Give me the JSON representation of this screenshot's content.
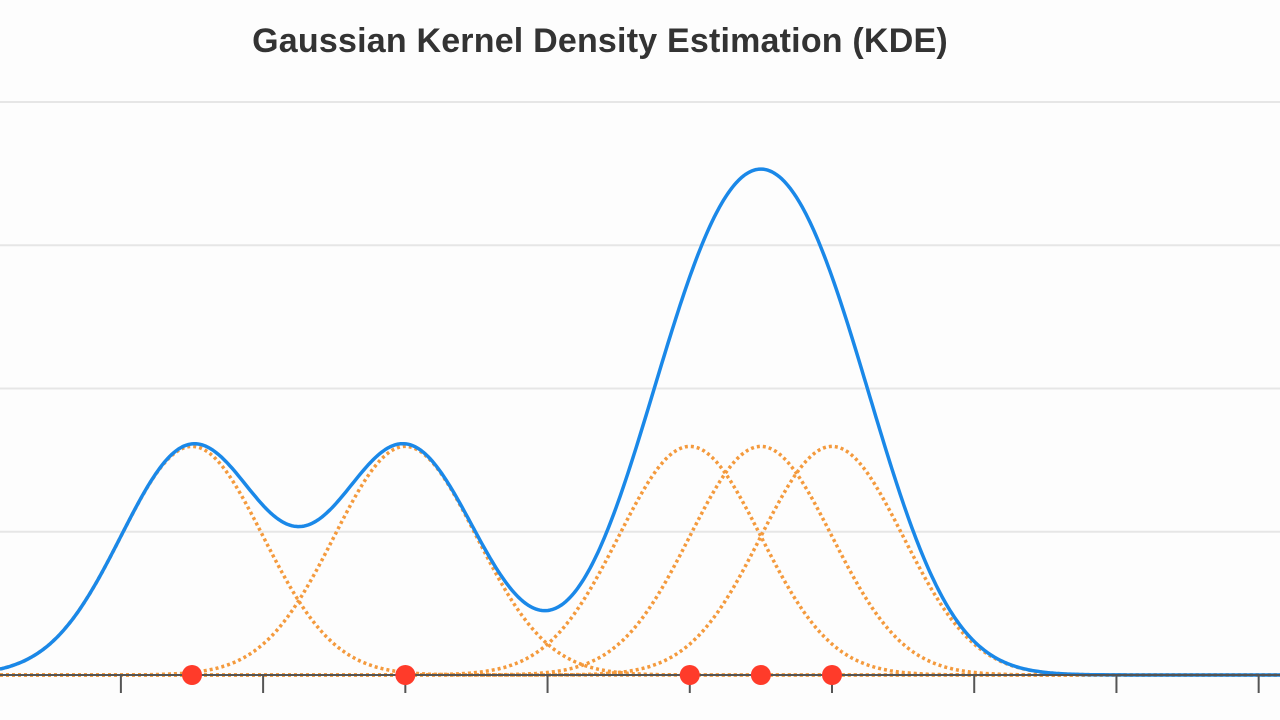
{
  "chart_data": {
    "type": "line",
    "title": "Gaussian Kernel Density Estimation (KDE)",
    "xlabel": "",
    "ylabel": "",
    "xlim": [
      -1.7,
      16.3
    ],
    "ylim": [
      0,
      0.2
    ],
    "grid": "horizontal",
    "bandwidth": 1,
    "samples": [
      1,
      4,
      8,
      9,
      10
    ],
    "series": [
      {
        "role": "kde",
        "color": "#1a88e8"
      },
      {
        "role": "kernel",
        "color": "#f49a3d"
      }
    ],
    "sample_point_color": "#ff3b2a"
  }
}
